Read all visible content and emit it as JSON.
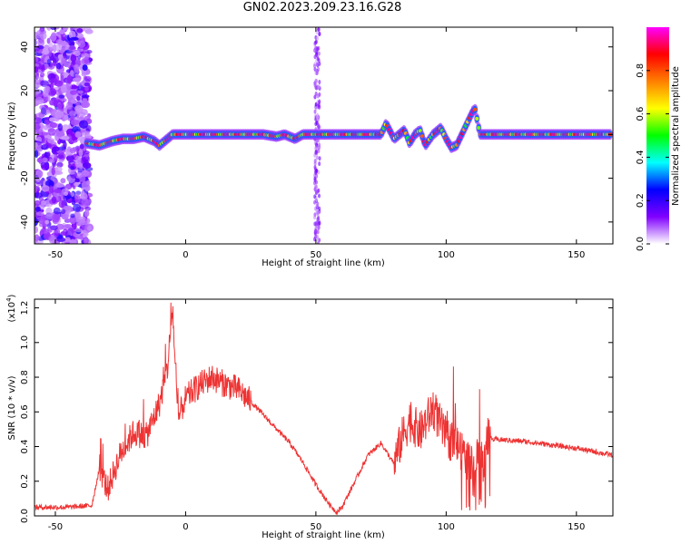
{
  "title": "GN02.2023.209.23.16.G28",
  "chart_data": [
    {
      "type": "heatmap",
      "xlabel": "Height of straight line (km)",
      "ylabel": "Frequency (Hz)",
      "xlim": [
        -58,
        164
      ],
      "ylim": [
        -50,
        49
      ],
      "xticks": [
        -50,
        0,
        50,
        100,
        150
      ],
      "yticks": [
        -40,
        -20,
        0,
        20,
        40
      ],
      "colorbar": {
        "label": "Normalized spectral amplitude",
        "range": [
          0,
          1
        ],
        "ticks": [
          "0.0",
          "0.2",
          "0.4",
          "0.6",
          "0.8"
        ],
        "colors": [
          "#ffffff",
          "#8000ff",
          "#0000ff",
          "#00ffff",
          "#00ff00",
          "#ffff00",
          "#ff8000",
          "#ff0000",
          "#ff00ff"
        ]
      },
      "ridge": {
        "x": [
          -38,
          -33,
          -28,
          -24,
          -20,
          -16,
          -12,
          -10,
          -8,
          -5,
          0,
          10,
          20,
          30,
          35,
          38,
          42,
          45,
          50,
          55,
          60,
          70,
          75,
          77,
          80,
          84,
          86,
          88,
          90,
          92,
          95,
          98,
          100,
          102,
          104,
          106,
          108,
          110,
          111,
          113,
          120,
          130,
          140,
          150,
          163
        ],
        "frequency": [
          -4,
          -5,
          -3,
          -2,
          -2,
          -1,
          -3,
          -5,
          -3,
          0,
          0,
          0,
          0,
          0,
          -1,
          0,
          -2,
          0,
          0,
          0,
          0,
          0,
          0,
          5,
          -2,
          2,
          -4,
          0,
          2,
          -5,
          0,
          3,
          -2,
          -6,
          -5,
          0,
          5,
          10,
          12,
          0,
          0,
          0,
          0,
          0,
          0
        ]
      }
    },
    {
      "type": "line",
      "xlabel": "Height of straight line (km)",
      "ylabel": "SNR (10 * v/v)",
      "yscale_label": "(x10",
      "yscale_exp": "4",
      "xlim": [
        -58,
        164
      ],
      "ylim": [
        0,
        1.25
      ],
      "xticks": [
        -50,
        0,
        50,
        100,
        150
      ],
      "yticks": [
        "0.0",
        "0.2",
        "0.4",
        "0.6",
        "0.8",
        "1.0",
        "1.2"
      ],
      "color": "#ee3333",
      "series": [
        {
          "x": [
            -58,
            -45,
            -36,
            -33,
            -30,
            -25,
            -20,
            -15,
            -10,
            -7,
            -5,
            -3,
            0,
            5,
            10,
            15,
            20,
            25,
            30,
            35,
            40,
            45,
            50,
            55,
            58,
            60,
            65,
            70,
            75,
            80,
            83,
            86,
            90,
            95,
            100,
            105,
            110,
            112,
            114,
            116,
            118,
            120,
            130,
            140,
            150,
            164
          ],
          "value": [
            0.05,
            0.05,
            0.06,
            0.28,
            0.15,
            0.36,
            0.48,
            0.46,
            0.65,
            0.85,
            1.2,
            0.55,
            0.68,
            0.75,
            0.8,
            0.76,
            0.73,
            0.66,
            0.58,
            0.5,
            0.42,
            0.31,
            0.18,
            0.07,
            0.02,
            0.05,
            0.2,
            0.35,
            0.42,
            0.3,
            0.45,
            0.55,
            0.48,
            0.62,
            0.45,
            0.4,
            0.28,
            0.35,
            0.3,
            0.45,
            0.44,
            0.44,
            0.43,
            0.41,
            0.39,
            0.35
          ]
        }
      ]
    }
  ]
}
